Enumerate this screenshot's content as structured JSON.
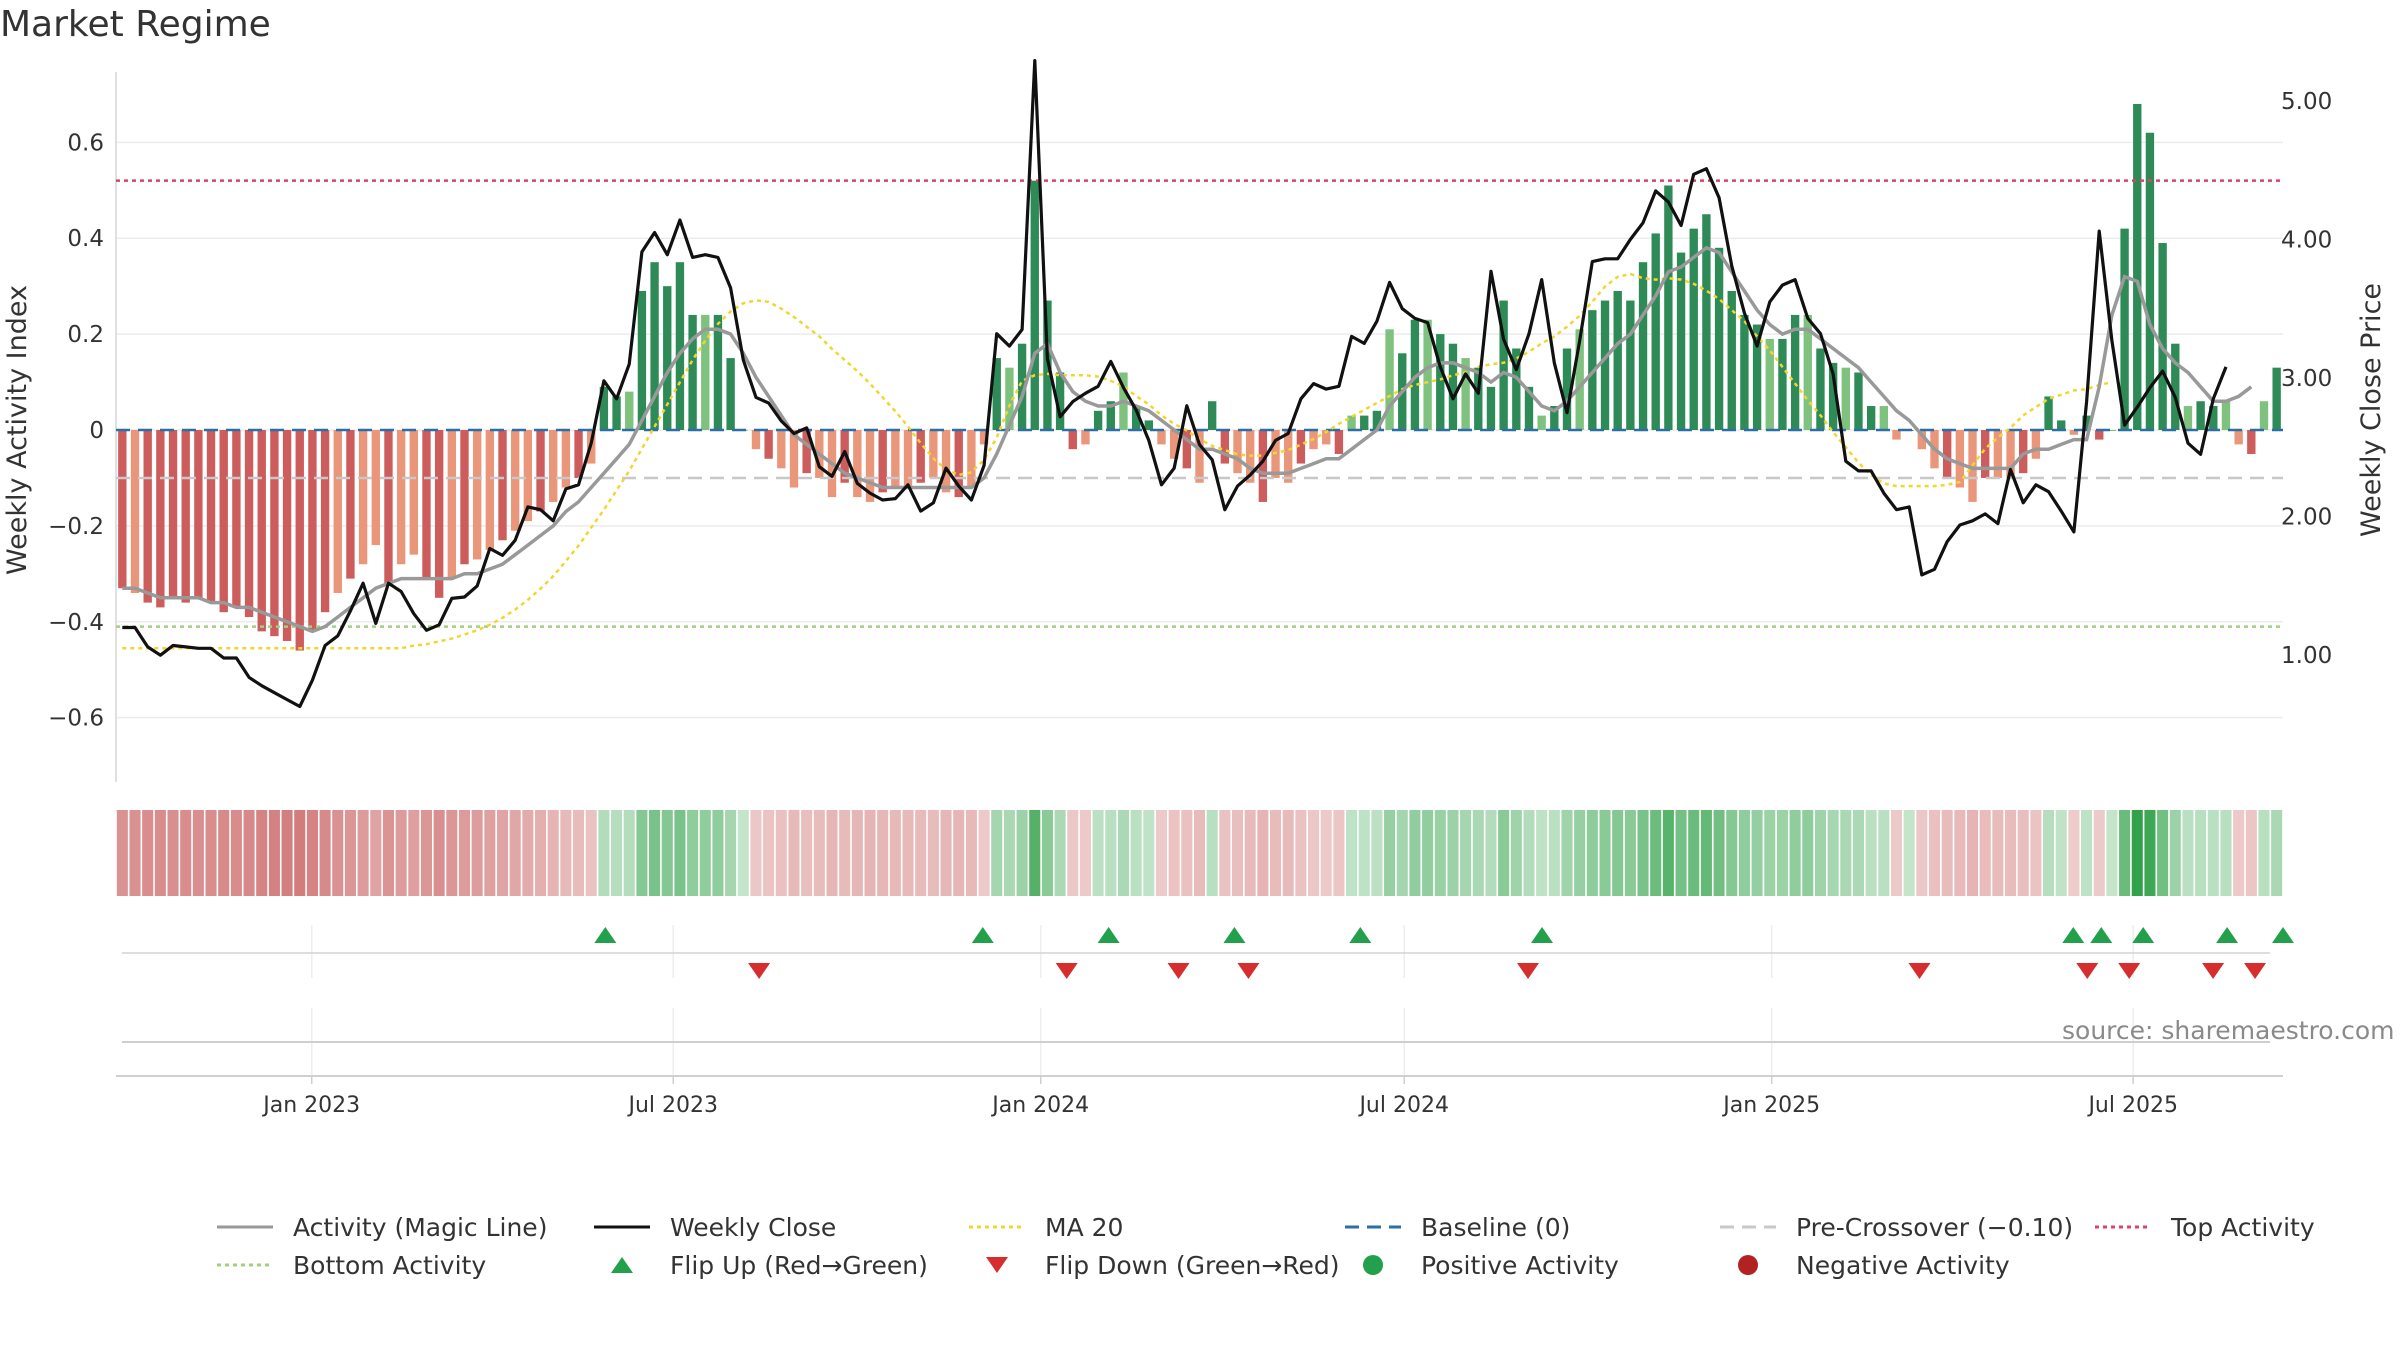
{
  "title": "Market Regime",
  "source": "source: sharemaestro.com",
  "colors": {
    "activity_line": "#999999",
    "close_line": "#111111",
    "ma20": "#f2d630",
    "baseline": "#2c6fa8",
    "pre_crossover": "#c8c8c8",
    "top_activity": "#d9436b",
    "bottom_activity": "#9fd27e",
    "flip_up": "#22a04b",
    "flip_down": "#d62e2e",
    "pos_dark": "#2e8b57",
    "pos_light": "#7fc27f",
    "neg_dark": "#cd5c5c",
    "neg_light": "#e9967a"
  },
  "legend": [
    {
      "label": "Activity (Magic Line)",
      "kind": "line",
      "color": "#999999",
      "dash": ""
    },
    {
      "label": "Weekly Close",
      "kind": "line",
      "color": "#111111",
      "dash": ""
    },
    {
      "label": "MA 20",
      "kind": "line",
      "color": "#f2d630",
      "dash": "4 4"
    },
    {
      "label": "Baseline (0)",
      "kind": "line",
      "color": "#2c6fa8",
      "dash": "14 8"
    },
    {
      "label": "Pre-Crossover (−0.10)",
      "kind": "line",
      "color": "#c8c8c8",
      "dash": "14 8"
    },
    {
      "label": "Top Activity",
      "kind": "line",
      "color": "#d9436b",
      "dash": "4 4"
    },
    {
      "label": "Bottom Activity",
      "kind": "line",
      "color": "#9fd27e",
      "dash": "4 4"
    },
    {
      "label": "Flip Up (Red→Green)",
      "kind": "tri-up",
      "color": "#22a04b",
      "dash": ""
    },
    {
      "label": "Flip Down (Green→Red)",
      "kind": "tri-down",
      "color": "#d62e2e",
      "dash": ""
    },
    {
      "label": "Positive Activity",
      "kind": "dot",
      "color": "#22a04b",
      "dash": ""
    },
    {
      "label": "Negative Activity",
      "kind": "dot",
      "color": "#b22222",
      "dash": ""
    }
  ],
  "chart_data": {
    "type": "bar",
    "title": "Market Regime",
    "xlabel": "",
    "ylabel": "Weekly Activity Index",
    "y2label": "Weekly Close Price",
    "ylim": [
      -0.73,
      0.73
    ],
    "y2lim": [
      0.1,
      5.15
    ],
    "yticks": [
      0.6,
      0.4,
      0.2,
      0,
      -0.2,
      -0.4,
      -0.6
    ],
    "ytick_labels": [
      "0.6",
      "0.4",
      "0.2",
      "0",
      "−0.2",
      "−0.4",
      "−0.6"
    ],
    "y2ticks": [
      5.0,
      4.0,
      3.0,
      2.0,
      1.0
    ],
    "y2tick_labels": [
      "5.00",
      "4.00",
      "3.00",
      "2.00",
      "1.00"
    ],
    "x_start": "2022-09-25",
    "x_end": "2025-09-14",
    "x_ticks": [
      "2023-01-01",
      "2023-07-01",
      "2024-01-01",
      "2024-07-01",
      "2025-01-01",
      "2025-07-01"
    ],
    "x_tick_labels": [
      "Jan 2023",
      "Jul 2023",
      "Jan 2024",
      "Jul 2024",
      "Jan 2025",
      "Jul 2025"
    ],
    "reference_lines": {
      "baseline": 0,
      "pre_crossover": -0.1,
      "top_activity": 0.52,
      "bottom_activity": -0.41
    },
    "grid": true,
    "legend_position": "bottom",
    "series_names": [
      "Activity (Magic Line)",
      "Weekly Close",
      "MA 20",
      "Baseline (0)",
      "Pre-Crossover (−0.10)",
      "Top Activity",
      "Bottom Activity",
      "Flip Up (Red→Green)",
      "Flip Down (Green→Red)",
      "Positive Activity",
      "Negative Activity"
    ],
    "activity_bars": [
      -0.33,
      -0.34,
      -0.36,
      -0.37,
      -0.35,
      -0.36,
      -0.35,
      -0.36,
      -0.38,
      -0.37,
      -0.39,
      -0.42,
      -0.43,
      -0.44,
      -0.46,
      -0.42,
      -0.38,
      -0.34,
      -0.31,
      -0.28,
      -0.24,
      -0.32,
      -0.28,
      -0.26,
      -0.31,
      -0.35,
      -0.31,
      -0.28,
      -0.27,
      -0.25,
      -0.23,
      -0.21,
      -0.19,
      -0.17,
      -0.15,
      -0.12,
      -0.1,
      -0.07,
      0.09,
      0.07,
      0.08,
      0.29,
      0.35,
      0.3,
      0.35,
      0.24,
      0.24,
      0.24,
      0.15,
      0.0,
      -0.04,
      -0.06,
      -0.08,
      -0.12,
      -0.09,
      -0.1,
      -0.14,
      -0.11,
      -0.14,
      -0.15,
      -0.13,
      -0.12,
      -0.12,
      -0.11,
      -0.1,
      -0.13,
      -0.14,
      -0.12,
      -0.03,
      0.15,
      0.13,
      0.18,
      0.52,
      0.27,
      0.12,
      -0.04,
      -0.03,
      0.04,
      0.06,
      0.12,
      0.05,
      0.02,
      -0.03,
      -0.06,
      -0.08,
      -0.11,
      0.06,
      -0.07,
      -0.09,
      -0.11,
      -0.15,
      -0.1,
      -0.11,
      -0.07,
      -0.04,
      -0.03,
      -0.05,
      0.03,
      0.03,
      0.04,
      0.21,
      0.16,
      0.23,
      0.23,
      0.2,
      0.18,
      0.15,
      0.13,
      0.09,
      0.27,
      0.17,
      0.09,
      0.03,
      0.05,
      0.17,
      0.21,
      0.25,
      0.27,
      0.29,
      0.27,
      0.35,
      0.41,
      0.51,
      0.37,
      0.42,
      0.45,
      0.38,
      0.29,
      0.24,
      0.22,
      0.19,
      0.19,
      0.24,
      0.24,
      0.17,
      0.14,
      0.13,
      0.12,
      0.05,
      0.05,
      -0.02,
      0.0,
      -0.04,
      -0.08,
      -0.1,
      -0.12,
      -0.15,
      -0.1,
      -0.1,
      -0.1,
      -0.09,
      -0.06,
      0.07,
      0.02,
      -0.01,
      0.03,
      -0.02,
      0.0,
      0.42,
      0.68,
      0.62,
      0.39,
      0.18,
      0.05,
      0.06,
      0.05,
      0.06,
      -0.03,
      -0.05,
      0.06,
      0.13
    ],
    "activity_line": [
      -0.33,
      -0.33,
      -0.34,
      -0.35,
      -0.35,
      -0.35,
      -0.35,
      -0.36,
      -0.36,
      -0.37,
      -0.37,
      -0.38,
      -0.39,
      -0.4,
      -0.41,
      -0.42,
      -0.41,
      -0.39,
      -0.37,
      -0.35,
      -0.33,
      -0.32,
      -0.31,
      -0.31,
      -0.31,
      -0.31,
      -0.31,
      -0.3,
      -0.3,
      -0.29,
      -0.28,
      -0.26,
      -0.24,
      -0.22,
      -0.2,
      -0.17,
      -0.15,
      -0.12,
      -0.09,
      -0.06,
      -0.03,
      0.02,
      0.07,
      0.12,
      0.16,
      0.19,
      0.21,
      0.21,
      0.2,
      0.16,
      0.11,
      0.07,
      0.03,
      -0.01,
      -0.03,
      -0.05,
      -0.07,
      -0.09,
      -0.1,
      -0.11,
      -0.12,
      -0.12,
      -0.12,
      -0.12,
      -0.12,
      -0.12,
      -0.12,
      -0.12,
      -0.1,
      -0.05,
      0.01,
      0.07,
      0.16,
      0.18,
      0.12,
      0.08,
      0.06,
      0.05,
      0.05,
      0.06,
      0.05,
      0.04,
      0.02,
      0.0,
      -0.02,
      -0.04,
      -0.04,
      -0.05,
      -0.06,
      -0.08,
      -0.09,
      -0.09,
      -0.09,
      -0.08,
      -0.07,
      -0.06,
      -0.06,
      -0.04,
      -0.02,
      0.0,
      0.05,
      0.08,
      0.11,
      0.13,
      0.14,
      0.14,
      0.13,
      0.12,
      0.1,
      0.12,
      0.11,
      0.08,
      0.05,
      0.04,
      0.06,
      0.09,
      0.12,
      0.15,
      0.18,
      0.2,
      0.24,
      0.28,
      0.33,
      0.34,
      0.36,
      0.38,
      0.37,
      0.33,
      0.29,
      0.25,
      0.22,
      0.2,
      0.21,
      0.21,
      0.19,
      0.17,
      0.15,
      0.13,
      0.1,
      0.07,
      0.04,
      0.02,
      -0.01,
      -0.04,
      -0.06,
      -0.07,
      -0.08,
      -0.08,
      -0.08,
      -0.08,
      -0.05,
      -0.04,
      -0.04,
      -0.03,
      -0.02,
      -0.02,
      0.09,
      0.24,
      0.32,
      0.31,
      0.22,
      0.17,
      0.14,
      0.12,
      0.09,
      0.06,
      0.06,
      0.07,
      0.09
    ],
    "weekly_close": [
      1.2,
      1.2,
      1.06,
      1.0,
      1.07,
      1.06,
      1.05,
      1.05,
      0.98,
      0.98,
      0.84,
      0.78,
      0.73,
      0.68,
      0.63,
      0.82,
      1.07,
      1.14,
      1.32,
      1.52,
      1.23,
      1.52,
      1.46,
      1.3,
      1.18,
      1.22,
      1.41,
      1.42,
      1.5,
      1.77,
      1.72,
      1.83,
      2.07,
      2.05,
      1.97,
      2.2,
      2.23,
      2.53,
      2.98,
      2.85,
      3.1,
      3.91,
      4.05,
      3.89,
      4.14,
      3.87,
      3.89,
      3.87,
      3.65,
      3.13,
      2.86,
      2.82,
      2.69,
      2.6,
      2.64,
      2.36,
      2.29,
      2.47,
      2.24,
      2.17,
      2.12,
      2.13,
      2.23,
      2.04,
      2.1,
      2.35,
      2.22,
      2.12,
      2.37,
      3.32,
      3.23,
      3.35,
      5.29,
      3.14,
      2.72,
      2.83,
      2.89,
      2.94,
      3.12,
      2.93,
      2.77,
      2.55,
      2.23,
      2.35,
      2.8,
      2.52,
      2.41,
      2.05,
      2.22,
      2.3,
      2.4,
      2.55,
      2.6,
      2.85,
      2.96,
      2.92,
      2.94,
      3.3,
      3.25,
      3.41,
      3.69,
      3.5,
      3.43,
      3.4,
      3.08,
      2.85,
      3.03,
      2.89,
      3.77,
      3.28,
      3.06,
      3.32,
      3.71,
      3.11,
      2.75,
      3.27,
      3.84,
      3.86,
      3.86,
      4.0,
      4.12,
      4.35,
      4.27,
      4.1,
      4.47,
      4.51,
      4.3,
      3.81,
      3.47,
      3.23,
      3.55,
      3.67,
      3.71,
      3.43,
      3.32,
      3.03,
      2.4,
      2.33,
      2.33,
      2.17,
      2.05,
      2.07,
      1.58,
      1.62,
      1.82,
      1.94,
      1.97,
      2.02,
      1.95,
      2.34,
      2.1,
      2.23,
      2.18,
      2.04,
      1.89,
      2.83,
      4.06,
      3.27,
      2.66,
      2.79,
      2.93,
      3.05,
      2.86,
      2.53,
      2.45,
      2.85,
      3.08
    ],
    "ma20": [
      1.05,
      1.05,
      1.05,
      1.05,
      1.05,
      1.05,
      1.05,
      1.05,
      1.05,
      1.05,
      1.05,
      1.05,
      1.05,
      1.05,
      1.05,
      1.05,
      1.05,
      1.05,
      1.05,
      1.05,
      1.05,
      1.05,
      1.05,
      1.07,
      1.08,
      1.1,
      1.12,
      1.15,
      1.18,
      1.22,
      1.27,
      1.33,
      1.4,
      1.48,
      1.57,
      1.68,
      1.79,
      1.92,
      2.05,
      2.19,
      2.33,
      2.49,
      2.65,
      2.81,
      2.97,
      3.13,
      3.27,
      3.39,
      3.48,
      3.54,
      3.56,
      3.55,
      3.5,
      3.44,
      3.37,
      3.3,
      3.21,
      3.13,
      3.05,
      2.96,
      2.86,
      2.76,
      2.65,
      2.53,
      2.42,
      2.34,
      2.3,
      2.32,
      2.41,
      2.57,
      2.8,
      2.98,
      3.02,
      3.03,
      3.02,
      3.02,
      3.02,
      3.01,
      2.98,
      2.94,
      2.87,
      2.81,
      2.73,
      2.67,
      2.62,
      2.56,
      2.51,
      2.48,
      2.45,
      2.44,
      2.44,
      2.46,
      2.48,
      2.52,
      2.56,
      2.61,
      2.67,
      2.72,
      2.77,
      2.82,
      2.87,
      2.92,
      2.95,
      2.97,
      2.99,
      3.02,
      3.04,
      3.08,
      3.1,
      3.11,
      3.14,
      3.19,
      3.25,
      3.3,
      3.37,
      3.45,
      3.55,
      3.66,
      3.73,
      3.75,
      3.72,
      3.71,
      3.72,
      3.71,
      3.68,
      3.63,
      3.57,
      3.49,
      3.41,
      3.3,
      3.2,
      3.08,
      2.96,
      2.84,
      2.73,
      2.61,
      2.5,
      2.39,
      2.3,
      2.24,
      2.22,
      2.22,
      2.22,
      2.22,
      2.23,
      2.25,
      2.37,
      2.49,
      2.57,
      2.64,
      2.73,
      2.79,
      2.85,
      2.88,
      2.91,
      2.92,
      2.95,
      2.97
    ],
    "flip_up_dates": [
      "2023-05-28",
      "2023-12-03",
      "2024-02-04",
      "2024-04-07",
      "2024-06-09",
      "2024-09-08",
      "2025-06-01",
      "2025-06-15",
      "2025-07-06",
      "2025-08-17",
      "2025-09-14"
    ],
    "flip_down_dates": [
      "2023-08-13",
      "2024-01-14",
      "2024-03-10",
      "2024-04-14",
      "2024-09-01",
      "2025-03-16",
      "2025-06-08",
      "2025-06-29",
      "2025-08-10",
      "2025-08-31"
    ]
  }
}
